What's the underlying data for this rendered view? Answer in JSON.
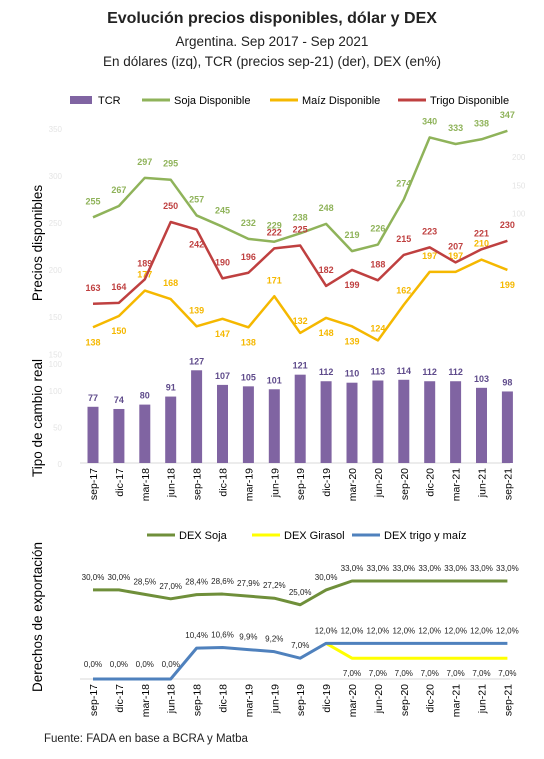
{
  "title": "Evolución precios disponibles, dólar y DEX",
  "subtitle1": "Argentina. Sep 2017 - Sep 2021",
  "subtitle2": "En dólares (izq), TCR (precios sep-21) (der), DEX (en%)",
  "source": "Fuente: FADA en base a BCRA y Matba",
  "chart_data": [
    {
      "type": "line",
      "title": "Evolución precios disponibles, dólar y DEX",
      "ylabel": "Precios disponibles",
      "x": [
        "sep-17",
        "dic-17",
        "mar-18",
        "jun-18",
        "sep-18",
        "dic-18",
        "mar-19",
        "jun-19",
        "sep-19",
        "dic-19",
        "mar-20",
        "jun-20",
        "sep-20",
        "dic-20",
        "mar-21",
        "jun-21",
        "sep-21"
      ],
      "ylim": [
        100,
        350
      ],
      "grid": false,
      "legend": "top",
      "series": [
        {
          "name": "Soja Disponible",
          "color": "#8fb35a",
          "values": [
            255,
            267,
            297,
            295,
            257,
            245,
            232,
            229,
            238,
            248,
            219,
            226,
            274,
            340,
            333,
            338,
            347
          ]
        },
        {
          "name": "Maíz Disponible",
          "color": "#f5b800",
          "values": [
            138,
            150,
            177,
            168,
            139,
            147,
            138,
            171,
            132,
            148,
            139,
            124,
            162,
            197,
            197,
            210,
            199
          ]
        },
        {
          "name": "Trigo Disponible",
          "color": "#bf4040",
          "values": [
            163,
            164,
            189,
            250,
            242,
            190,
            196,
            222,
            225,
            182,
            199,
            188,
            215,
            223,
            207,
            221,
            230
          ]
        }
      ]
    },
    {
      "type": "bar",
      "ylabel": "Tipo de cambio real",
      "categories": [
        "sep-17",
        "dic-17",
        "mar-18",
        "jun-18",
        "sep-18",
        "dic-18",
        "mar-19",
        "jun-19",
        "sep-19",
        "dic-19",
        "mar-20",
        "jun-20",
        "sep-20",
        "dic-20",
        "mar-21",
        "jun-21",
        "sep-21"
      ],
      "ylim": [
        0,
        150
      ],
      "series": [
        {
          "name": "TCR",
          "color": "#8064a2",
          "values": [
            77,
            74,
            80,
            91,
            127,
            107,
            105,
            101,
            121,
            112,
            110,
            113,
            114,
            112,
            112,
            103,
            98
          ]
        }
      ]
    },
    {
      "type": "line",
      "ylabel": "Derechos de exportación",
      "x": [
        "sep-17",
        "dic-17",
        "mar-18",
        "jun-18",
        "sep-18",
        "dic-18",
        "mar-19",
        "jun-19",
        "sep-19",
        "dic-19",
        "mar-20",
        "jun-20",
        "sep-20",
        "dic-20",
        "mar-21",
        "jun-21",
        "sep-21"
      ],
      "ylim": [
        0,
        40
      ],
      "legend": "top",
      "series": [
        {
          "name": "DEX Soja",
          "color": "#6f8f3a",
          "values": [
            30.0,
            30.0,
            28.5,
            27.0,
            28.4,
            28.6,
            27.9,
            27.2,
            25.0,
            30.0,
            33.0,
            33.0,
            33.0,
            33.0,
            33.0,
            33.0,
            33.0
          ],
          "labels": [
            "30,0%",
            "30,0%",
            "28,5%",
            "27,0%",
            "28,4%",
            "28,6%",
            "27,9%",
            "27,2%",
            "25,0%",
            "30,0%",
            "33,0%",
            "33,0%",
            "33,0%",
            "33,0%",
            "33,0%",
            "33,0%",
            "33,0%"
          ]
        },
        {
          "name": "DEX Girasol",
          "color": "#ffff00",
          "values": [
            null,
            null,
            null,
            null,
            null,
            null,
            null,
            null,
            null,
            12.0,
            7.0,
            7.0,
            7.0,
            7.0,
            7.0,
            7.0,
            7.0
          ],
          "labels": [
            "",
            "",
            "",
            "",
            "",
            "",
            "",
            "",
            "",
            "",
            "7,0%",
            "7,0%",
            "7,0%",
            "7,0%",
            "7,0%",
            "7,0%",
            "7,0%"
          ]
        },
        {
          "name": "DEX trigo y maíz",
          "color": "#4f81bd",
          "values": [
            0.0,
            0.0,
            0.0,
            0.0,
            10.4,
            10.6,
            9.9,
            9.2,
            7.0,
            12.0,
            12.0,
            12.0,
            12.0,
            12.0,
            12.0,
            12.0,
            12.0
          ],
          "labels": [
            "0,0%",
            "0,0%",
            "0,0%",
            "0,0%",
            "10,4%",
            "10,6%",
            "9,9%",
            "9,2%",
            "7,0%",
            "12,0%",
            "12,0%",
            "12,0%",
            "12,0%",
            "12,0%",
            "12,0%",
            "12,0%",
            "12,0%"
          ]
        }
      ]
    }
  ]
}
